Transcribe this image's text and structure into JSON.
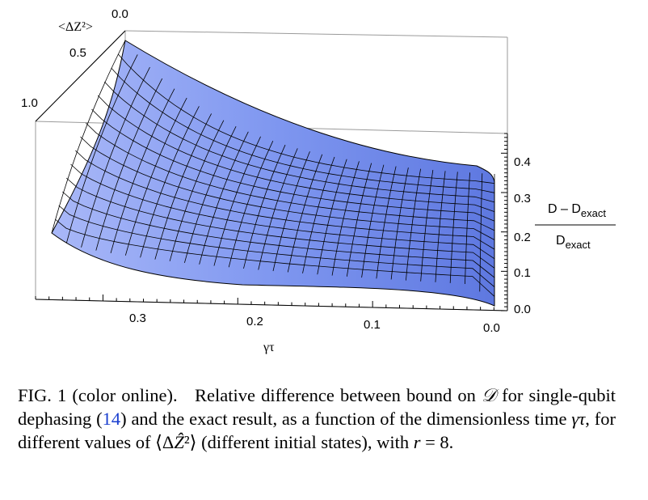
{
  "figure": {
    "z_axis_title": "<ΔZ²>",
    "z_ticks": [
      "0.0",
      "0.5",
      "1.0"
    ],
    "x_axis_title": "γτ",
    "x_ticks": [
      "0.3",
      "0.2",
      "0.1",
      "0.0"
    ],
    "y_ticks": [
      "0.4",
      "0.3",
      "0.2",
      "0.1",
      "0.0"
    ],
    "y_label_numerator": "D – D",
    "y_label_numerator_sub": "exact",
    "y_label_denominator": "D",
    "y_label_denominator_sub": "exact",
    "surface_color": "#8fa6f5"
  },
  "chart_data": {
    "type": "surface",
    "x_axis": "γτ",
    "x_range": [
      0.0,
      0.35
    ],
    "z_axis": "<ΔZ²>",
    "z_range": [
      0.0,
      1.0
    ],
    "y_range": [
      0.0,
      0.45
    ],
    "y_label": "(D − D_exact)/D_exact",
    "samples": [
      {
        "delta_z2": 0.0,
        "gamma_tau": [
          0.35,
          0.3,
          0.2,
          0.1,
          0.02,
          0.0
        ],
        "value": [
          0.45,
          0.38,
          0.26,
          0.21,
          0.18,
          0.0
        ]
      },
      {
        "delta_z2": 0.5,
        "gamma_tau": [
          0.35,
          0.3,
          0.2,
          0.1,
          0.02,
          0.0
        ],
        "value": [
          0.3,
          0.24,
          0.16,
          0.12,
          0.1,
          0.0
        ]
      },
      {
        "delta_z2": 1.0,
        "gamma_tau": [
          0.35,
          0.3,
          0.2,
          0.1,
          0.02,
          0.0
        ],
        "value": [
          0.16,
          0.09,
          0.04,
          0.03,
          0.02,
          0.0
        ]
      }
    ]
  },
  "caption": {
    "prefix": "FIG. 1 (color online).",
    "text_1": "Relative difference between bound on ",
    "symbol_D": "𝒟",
    "text_2": " for single-qubit dephasing (",
    "ref": "14",
    "text_3": ") and the exact result, as a function of the dimensionless time ",
    "symbol_gt": "γτ",
    "text_4": ", for different values of ⟨Δ",
    "symbol_Z": "Ẑ",
    "text_5": "²⟩ (different initial states), with ",
    "symbol_r": "r",
    "text_6": " = 8."
  }
}
